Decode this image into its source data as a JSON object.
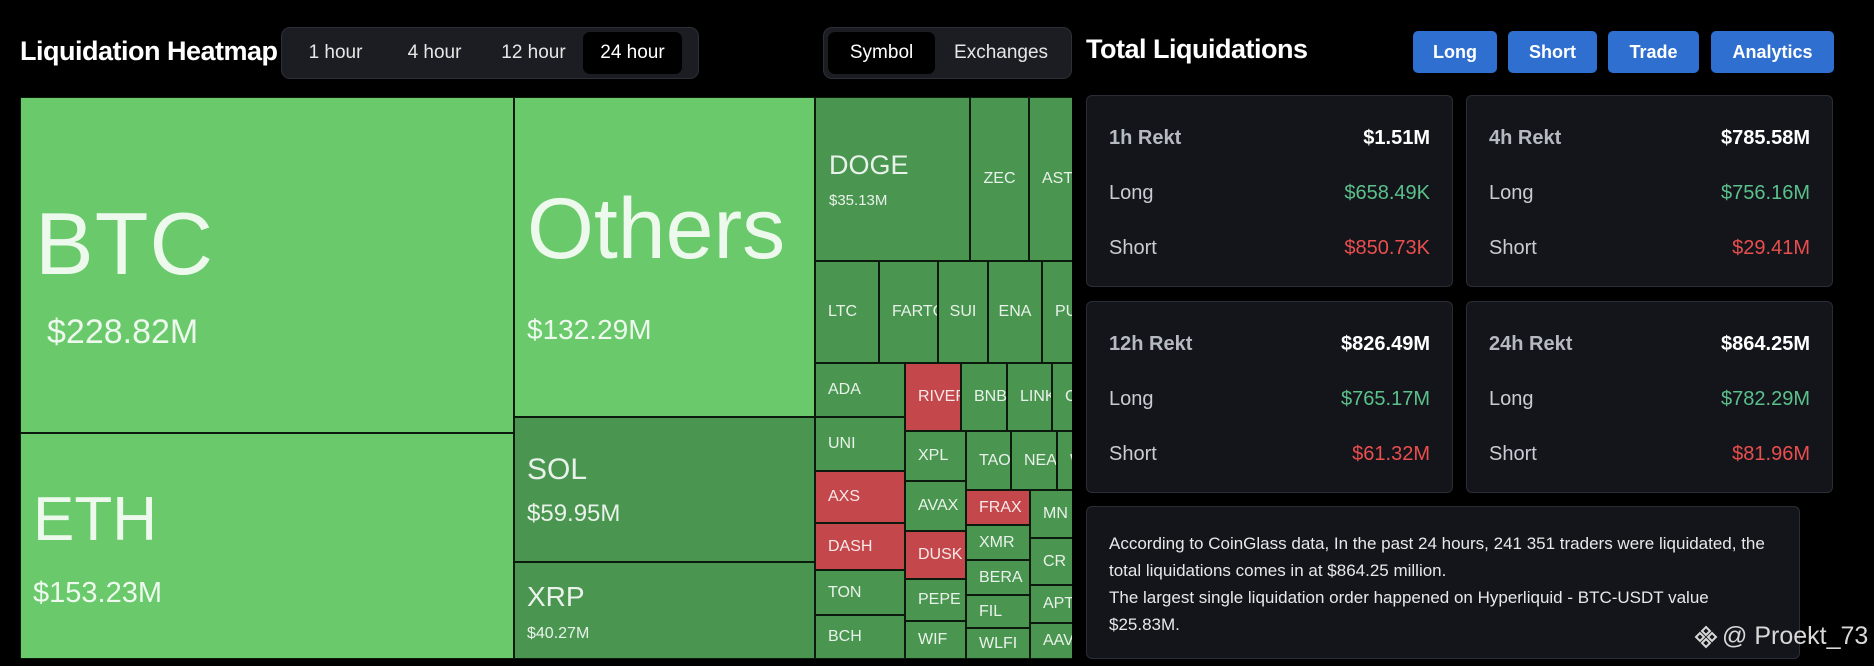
{
  "heatmap": {
    "title": "Liquidation Heatmap",
    "time_ranges": [
      "1 hour",
      "4 hour",
      "12 hour",
      "24 hour"
    ],
    "time_active": "24 hour",
    "views": [
      "Symbol",
      "Exchanges"
    ],
    "view_active": "Symbol"
  },
  "tiles": {
    "btc": {
      "label": "BTC",
      "value": "$228.82M"
    },
    "eth": {
      "label": "ETH",
      "value": "$153.23M"
    },
    "others": {
      "label": "Others",
      "value": "$132.29M"
    },
    "sol": {
      "label": "SOL",
      "value": "$59.95M"
    },
    "xrp": {
      "label": "XRP",
      "value": "$40.27M"
    },
    "doge": {
      "label": "DOGE",
      "value": "$35.13M"
    },
    "zec": "ZEC",
    "ast": "AST",
    "ltc": "LTC",
    "fart": "FARTC",
    "sui": "SUI",
    "ena": "ENA",
    "pu": "PU",
    "ada": "ADA",
    "river": "RIVER",
    "bnb": "BNB",
    "link": "LINK",
    "c": "C",
    "uni": "UNI",
    "xpl": "XPL",
    "tao": "TAO",
    "nea": "NEA",
    "w": "W",
    "axs": "AXS",
    "avax": "AVAX",
    "frax": "FRAX",
    "mn": "MN",
    "dash": "DASH",
    "dusk": "DUSK",
    "xmr": "XMR",
    "cr": "CR",
    "ton": "TON",
    "pepe": "PEPE",
    "bera": "BERA",
    "apt": "APT",
    "fil": "FIL",
    "bch": "BCH",
    "wif": "WIF",
    "wlfi": "WLFI",
    "aav": "AAV"
  },
  "total": {
    "title": "Total Liquidations",
    "actions": [
      "Long",
      "Short",
      "Trade",
      "Analytics"
    ],
    "cards": [
      {
        "label": "1h Rekt",
        "total": "$1.51M",
        "long_label": "Long",
        "long": "$658.49K",
        "short_label": "Short",
        "short": "$850.73K"
      },
      {
        "label": "4h Rekt",
        "total": "$785.58M",
        "long_label": "Long",
        "long": "$756.16M",
        "short_label": "Short",
        "short": "$29.41M"
      },
      {
        "label": "12h Rekt",
        "total": "$826.49M",
        "long_label": "Long",
        "long": "$765.17M",
        "short_label": "Short",
        "short": "$61.32M"
      },
      {
        "label": "24h Rekt",
        "total": "$864.25M",
        "long_label": "Long",
        "long": "$782.29M",
        "short_label": "Short",
        "short": "$81.96M"
      }
    ],
    "summary_line1": "According to CoinGlass data, In the past 24 hours, 241 351 traders were liquidated, the total liquidations comes in at $864.25 million.",
    "summary_line2": "The largest single liquidation order happened on Hyperliquid - BTC-USDT value $25.83M."
  },
  "watermark": "@ Proekt_73",
  "colors": {
    "tile_light": "#69c96b",
    "tile_mid": "#52a155",
    "tile_red": "#c4484b",
    "long": "#5cc08c",
    "short": "#ea4e4e",
    "accent": "#2f6fd0"
  }
}
